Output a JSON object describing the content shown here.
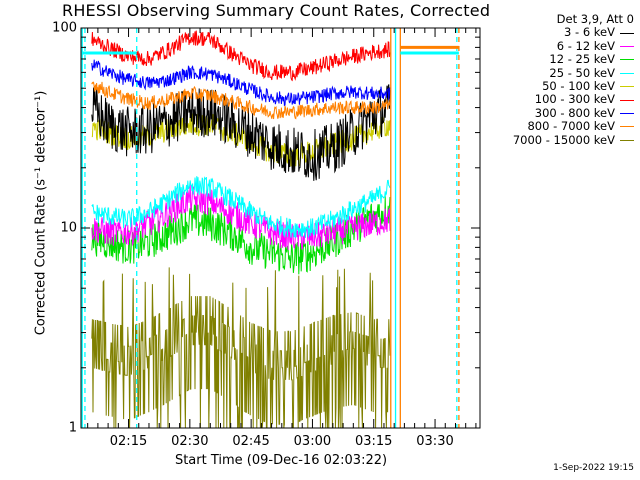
{
  "chart_data": {
    "type": "line",
    "title": "RHESSI Observing Summary Count Rates, Corrected",
    "xlabel": "Start Time (09-Dec-16 02:03:22)",
    "ylabel": "Corrected Count Rate (s⁻¹ detector⁻¹)",
    "yscale": "log",
    "ylim": [
      1,
      100
    ],
    "xlim": [
      "02:03:22",
      "03:41:00"
    ],
    "y_tick_labels": [
      "100",
      "10",
      "1"
    ],
    "x_tick_labels": [
      "02:15",
      "02:30",
      "02:45",
      "03:00",
      "03:15",
      "03:30"
    ],
    "legend_header": "Det 3,9, Att 0",
    "legend_position": "top-right, outside plot",
    "x": [
      "02:06",
      "02:10",
      "02:15",
      "02:20",
      "02:25",
      "02:30",
      "02:35",
      "02:40",
      "02:45",
      "02:50",
      "02:55",
      "03:00",
      "03:05",
      "03:10",
      "03:15",
      "03:19"
    ],
    "series": [
      {
        "name": "3 - 6 keV",
        "color": "#000000",
        "values": [
          40,
          33,
          30,
          31,
          34,
          38,
          38,
          34,
          30,
          26,
          24,
          23,
          25,
          30,
          37,
          40
        ]
      },
      {
        "name": "6 - 12 keV",
        "color": "#ff00ff",
        "values": [
          10,
          9.5,
          9.5,
          10.5,
          12,
          14,
          13.5,
          12,
          10.5,
          9.5,
          9,
          9,
          9.5,
          10,
          10.5,
          11
        ]
      },
      {
        "name": "12 - 25 keV",
        "color": "#00dd00",
        "values": [
          9,
          8.5,
          8,
          8.5,
          9.5,
          11,
          10.5,
          9.5,
          8,
          7.5,
          7,
          7.5,
          8.5,
          10,
          11.5,
          12.5
        ]
      },
      {
        "name": "25 - 50 keV",
        "color": "#00ffff",
        "values": [
          12,
          11.5,
          11,
          12,
          14,
          16.5,
          16,
          14,
          12,
          10.5,
          10,
          10,
          11,
          12.5,
          14,
          16
        ]
      },
      {
        "name": "50 - 100 keV",
        "color": "#cccc00",
        "values": [
          32,
          30,
          28,
          29,
          31,
          33,
          33,
          30,
          27,
          24,
          23,
          24,
          26,
          28,
          31,
          33
        ]
      },
      {
        "name": "100 - 300 keV",
        "color": "#ff0000",
        "values": [
          88,
          80,
          72,
          70,
          78,
          90,
          88,
          75,
          65,
          60,
          60,
          63,
          68,
          72,
          76,
          78
        ]
      },
      {
        "name": "300 - 800 keV",
        "color": "#0000ff",
        "values": [
          66,
          60,
          55,
          53,
          55,
          60,
          59,
          54,
          49,
          45,
          44,
          45,
          47,
          48,
          47,
          47
        ]
      },
      {
        "name": "800 - 7000 keV",
        "color": "#ff8000",
        "values": [
          53,
          48,
          44,
          42,
          44,
          47,
          46,
          43,
          40,
          38,
          38,
          39,
          40,
          40,
          40,
          41
        ]
      },
      {
        "name": "7000 - 15000 keV",
        "color": "#808000",
        "values": [
          2.3,
          2.2,
          2.1,
          2.3,
          2.6,
          3.0,
          3.0,
          2.6,
          2.2,
          2.0,
          2.0,
          2.2,
          2.4,
          2.5,
          2.3,
          2.3
        ]
      }
    ],
    "vertical_markers": [
      {
        "time": "02:03:40",
        "style": "solid",
        "color": "#00ffff"
      },
      {
        "time": "02:04:20",
        "style": "dashed",
        "color": "#00ffff"
      },
      {
        "time": "02:17:00",
        "style": "dashed",
        "color": "#00ffff"
      },
      {
        "time": "03:19:10",
        "style": "solid",
        "color": "#ff8000"
      },
      {
        "time": "03:20:20",
        "style": "solid",
        "color": "#00ffff"
      },
      {
        "time": "03:21:30",
        "style": "solid",
        "color": "#ff8000"
      },
      {
        "time": "03:35:20",
        "style": "dashed",
        "color": "#00ffff"
      },
      {
        "time": "03:35:50",
        "style": "dashed",
        "color": "#ff8000"
      }
    ],
    "flat_segments": [
      {
        "from": "02:03:40",
        "to": "02:17:00",
        "value": 75,
        "color": "#00ffff"
      },
      {
        "from": "03:21:30",
        "to": "03:35:50",
        "value": 80,
        "color": "#ff8000"
      },
      {
        "from": "03:21:30",
        "to": "03:35:50",
        "value": 75,
        "color": "#00ffff"
      }
    ]
  },
  "footer": {
    "date": "1-Sep-2022 19:15"
  }
}
